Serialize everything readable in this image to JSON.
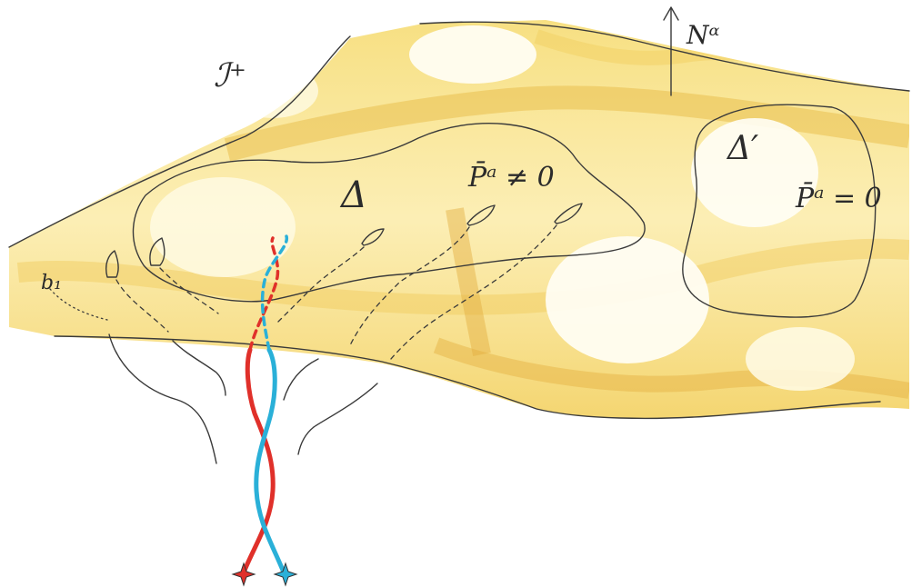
{
  "labels": {
    "horizon": "ℐ⁺",
    "normal": "Nᵅ",
    "region_left_symbol": "Δ",
    "region_left_condition": "P̄ᵃ ≠ 0",
    "region_right_symbol": "Δ′",
    "region_right_condition": "P̄ᵃ = 0",
    "probe_label": "b₁"
  },
  "colors": {
    "fill_light": "#fbf0b4",
    "fill_mid": "#f6dc74",
    "fill_dark": "#e8b84a",
    "ink": "#3a3a3a",
    "strand_red": "#e0302a",
    "strand_blue": "#2ab0d8",
    "star_red": "#e0302a",
    "star_blue": "#2ab0d8"
  },
  "icons": {
    "probe": "wing-icon",
    "star": "star-icon",
    "arrow": "arrow-up-icon"
  }
}
